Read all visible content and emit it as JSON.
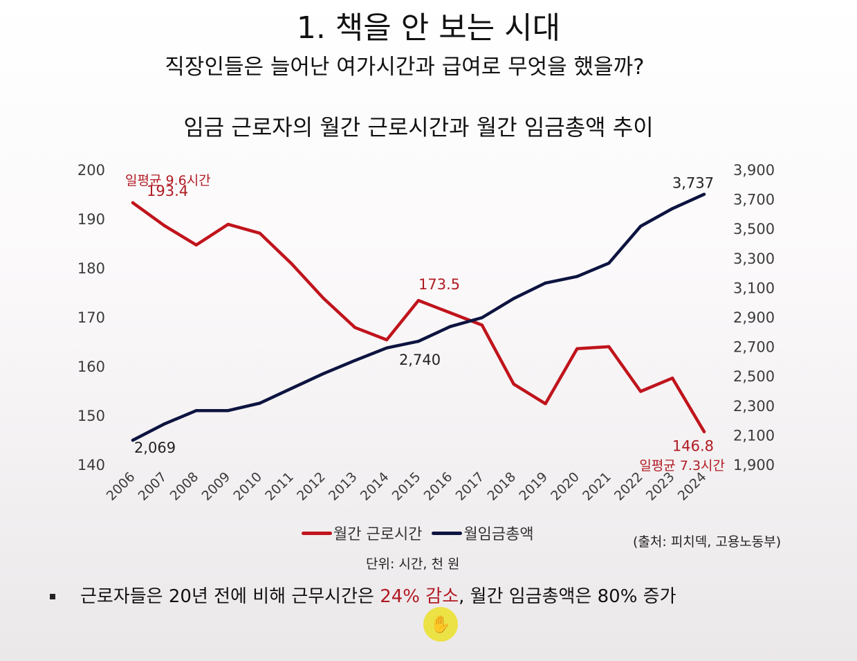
{
  "heading": {
    "title": "1. 책을 안 보는 시대",
    "subtitle": "직장인들은 늘어난 여가시간과 급여로 무엇을 했을까?"
  },
  "chart_data": {
    "type": "line",
    "title": "임금 근로자의 월간 근로시간과 월간 임금총액 추이",
    "categories": [
      "2006",
      "2007",
      "2008",
      "2009",
      "2010",
      "2011",
      "2012",
      "2013",
      "2014",
      "2015",
      "2016",
      "2017",
      "2018",
      "2019",
      "2020",
      "2021",
      "2022",
      "2023",
      "2024"
    ],
    "y_left": {
      "range": [
        140,
        200
      ],
      "ticks": [
        "200",
        "190",
        "180",
        "170",
        "160",
        "150",
        "140"
      ]
    },
    "y_right": {
      "range": [
        1900,
        3900
      ],
      "ticks": [
        "3,900",
        "3,700",
        "3,500",
        "3,300",
        "3,100",
        "2,900",
        "2,700",
        "2,500",
        "2,300",
        "2,100",
        "1,900"
      ]
    },
    "series": [
      {
        "name": "월간 근로시간",
        "axis": "left",
        "color": "#c0141c",
        "values": [
          193.4,
          188.7,
          184.8,
          189.0,
          187.2,
          181.0,
          174.0,
          168.0,
          165.5,
          173.5,
          171.0,
          168.5,
          156.5,
          152.5,
          163.7,
          164.1,
          155.0,
          157.7,
          146.8
        ]
      },
      {
        "name": "월임금총액",
        "axis": "right",
        "color": "#0d1440",
        "values": [
          2069,
          2180,
          2270,
          2270,
          2320,
          2420,
          2520,
          2610,
          2695,
          2740,
          2840,
          2900,
          3030,
          3135,
          3180,
          3270,
          3520,
          3640,
          3737
        ]
      }
    ],
    "data_labels": [
      {
        "text": "193.4",
        "series": 0,
        "index": 0
      },
      {
        "text": "173.5",
        "series": 0,
        "index": 9
      },
      {
        "text": "146.8",
        "series": 0,
        "index": 18
      },
      {
        "text": "2,069",
        "series": 1,
        "index": 0
      },
      {
        "text": "2,740",
        "series": 1,
        "index": 9
      },
      {
        "text": "3,737",
        "series": 1,
        "index": 18
      }
    ],
    "annotations": [
      "일평균 9.6시간",
      "일평균 7.3시간"
    ]
  },
  "source": "(출처: 피치덱, 고용노동부)",
  "unit": "단위: 시간, 천 원",
  "bullet": {
    "before": "근로자들은 20년 전에 비해 근무시간은 ",
    "highlight": "24% 감소",
    "after": ", 월간 임금총액은 80% 증가"
  },
  "cursor_icon": "hand-grab-icon"
}
